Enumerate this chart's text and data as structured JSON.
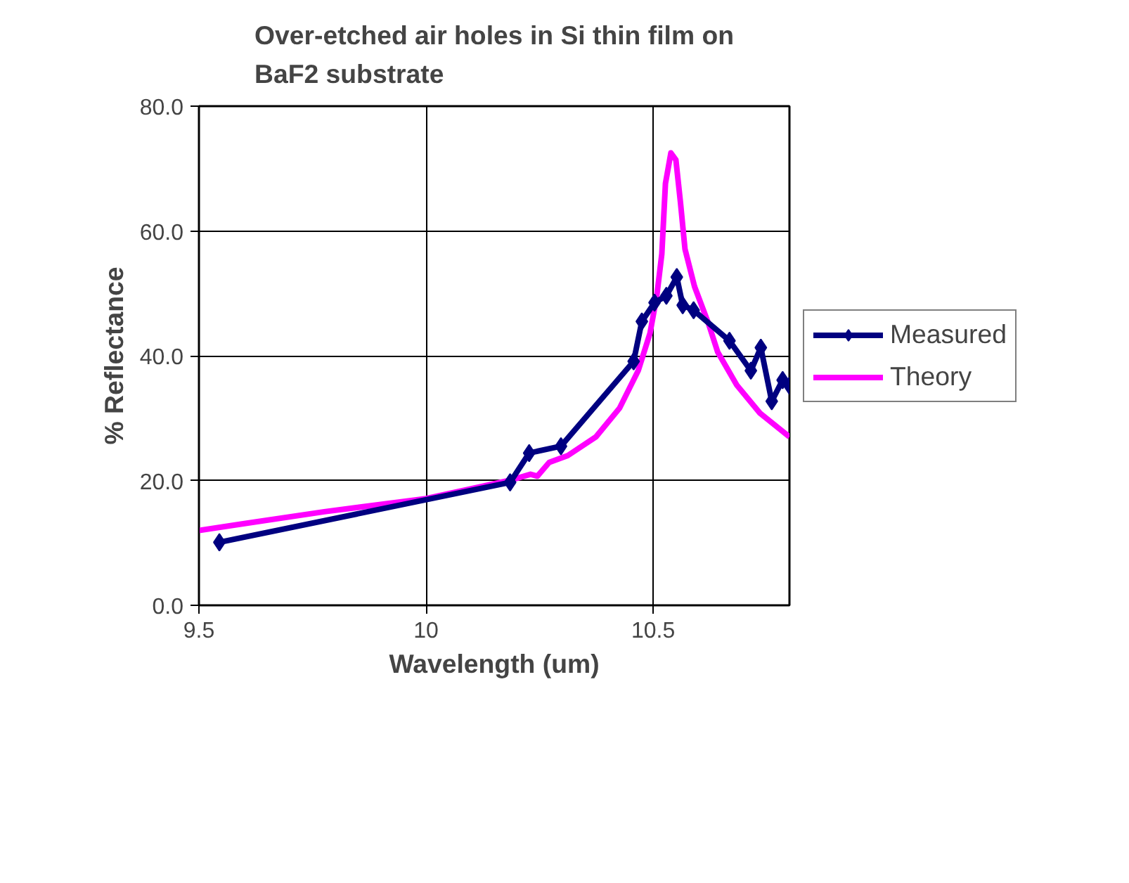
{
  "chart_data": {
    "type": "line",
    "title": "Over-etched air holes in Si thin film on BaF2 substrate",
    "xlabel": "Wavelength (um)",
    "ylabel": "% Reflectance",
    "xlim": [
      9.5,
      10.8
    ],
    "xticks": [
      9.5,
      10,
      10.5
    ],
    "ylim": [
      0,
      80
    ],
    "yticks": [
      {
        "value": 0,
        "label": "0.0"
      },
      {
        "value": 20,
        "label": "20.0"
      },
      {
        "value": 40,
        "label": "40.0"
      },
      {
        "value": 60,
        "label": "60.0"
      },
      {
        "value": 80,
        "label": "80.0"
      }
    ],
    "grid": true,
    "legend": "right",
    "line_style": "solid",
    "series": [
      {
        "name": "Measured",
        "color": "#000080",
        "marker": "diamond",
        "x": [
          9.545,
          10.185,
          10.227,
          10.297,
          10.457,
          10.475,
          10.503,
          10.529,
          10.552,
          10.565,
          10.589,
          10.668,
          10.715,
          10.737,
          10.761,
          10.785,
          10.8
        ],
        "values": [
          10.1,
          19.7,
          24.4,
          25.5,
          39.1,
          45.5,
          48.5,
          49.6,
          52.6,
          48.1,
          47.3,
          42.4,
          37.6,
          41.3,
          32.7,
          36.1,
          35.2
        ]
      },
      {
        "name": "Theory",
        "color": "#ff00ff",
        "marker": "none",
        "x": [
          9.5,
          9.6,
          9.776,
          10.0,
          10.188,
          10.23,
          10.245,
          10.271,
          10.312,
          10.374,
          10.426,
          10.467,
          10.493,
          10.508,
          10.519,
          10.527,
          10.539,
          10.55,
          10.56,
          10.57,
          10.591,
          10.622,
          10.642,
          10.684,
          10.735,
          10.8
        ],
        "values": [
          12.0,
          13.1,
          15.0,
          17.1,
          20.1,
          21.0,
          20.7,
          22.9,
          24.0,
          27.0,
          31.6,
          37.6,
          43.6,
          49.6,
          56.3,
          67.6,
          72.5,
          71.4,
          64.6,
          57.1,
          51.1,
          45.1,
          40.6,
          35.3,
          30.8,
          27.0
        ]
      }
    ]
  }
}
